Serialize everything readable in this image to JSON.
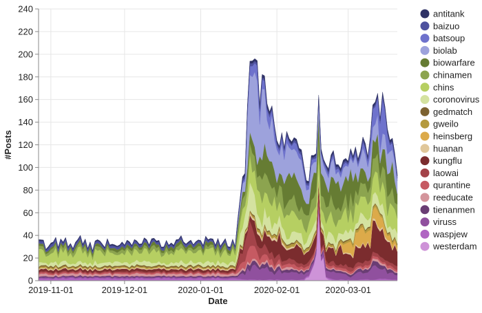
{
  "chart_data": {
    "type": "area",
    "stacked": true,
    "xlabel": "Date",
    "ylabel": "#Posts",
    "x_ticks": [
      "2019-11-01",
      "2019-12-01",
      "2020-01-01",
      "2020-02-01",
      "2020-03-01"
    ],
    "x_domain": [
      "2019-10-27",
      "2020-03-21"
    ],
    "ylim": [
      0,
      240
    ],
    "y_ticks": [
      0,
      20,
      40,
      60,
      80,
      100,
      120,
      140,
      160,
      180,
      200,
      220,
      240
    ],
    "grid": true,
    "legend_position": "right",
    "breakpoints": [
      "2019-10-27",
      "2020-01-15",
      "2020-01-19",
      "2020-01-21",
      "2020-01-23",
      "2020-01-25",
      "2020-01-28",
      "2020-01-31",
      "2020-02-03",
      "2020-02-06",
      "2020-02-09",
      "2020-02-12",
      "2020-02-15",
      "2020-02-18",
      "2020-02-21",
      "2020-02-24",
      "2020-02-27",
      "2020-03-01",
      "2020-03-05",
      "2020-03-09",
      "2020-03-12",
      "2020-03-15",
      "2020-03-18",
      "2020-03-21"
    ],
    "series": [
      {
        "name": "westerdam",
        "color": "#ce93d8",
        "values": [
          0,
          0,
          0,
          0,
          0,
          0,
          0,
          0,
          0,
          0,
          0,
          0,
          6,
          45,
          2,
          0,
          0,
          0,
          0,
          0,
          0,
          0,
          0,
          0
        ]
      },
      {
        "name": "waspjew",
        "color": "#b065c2",
        "values": [
          2,
          2,
          1,
          1,
          1,
          1,
          1,
          1,
          1,
          1,
          1,
          1,
          1,
          1,
          1,
          1,
          1,
          1,
          1,
          1,
          1,
          2,
          1,
          1
        ]
      },
      {
        "name": "viruss",
        "color": "#90509e",
        "values": [
          1,
          1,
          5,
          10,
          14,
          6,
          12,
          8,
          6,
          5,
          5,
          4,
          3,
          4,
          7,
          5,
          5,
          3,
          6,
          8,
          10,
          8,
          6,
          4
        ]
      },
      {
        "name": "tienanmen",
        "color": "#6a3d74",
        "values": [
          1,
          1,
          3,
          5,
          5,
          3,
          4,
          3,
          3,
          2,
          2,
          2,
          2,
          2,
          2,
          2,
          2,
          2,
          2,
          3,
          4,
          3,
          3,
          2
        ]
      },
      {
        "name": "reeducate",
        "color": "#d4959c",
        "values": [
          2,
          2,
          2,
          2,
          2,
          2,
          2,
          2,
          2,
          2,
          1,
          1,
          1,
          1,
          1,
          1,
          1,
          1,
          1,
          1,
          2,
          2,
          1,
          1
        ]
      },
      {
        "name": "qurantine",
        "color": "#c65a62",
        "values": [
          1,
          1,
          10,
          15,
          10,
          6,
          5,
          4,
          4,
          3,
          3,
          2,
          2,
          2,
          2,
          2,
          2,
          2,
          2,
          2,
          2,
          2,
          2,
          2
        ]
      },
      {
        "name": "laowai",
        "color": "#a34349",
        "values": [
          1,
          1,
          15,
          16,
          10,
          8,
          6,
          5,
          4,
          4,
          3,
          3,
          3,
          3,
          3,
          3,
          3,
          3,
          3,
          3,
          3,
          3,
          3,
          3
        ]
      },
      {
        "name": "kungflu",
        "color": "#7b2c2e",
        "values": [
          2,
          2,
          5,
          4,
          10,
          8,
          12,
          12,
          14,
          13,
          12,
          10,
          8,
          12,
          10,
          11,
          12,
          10,
          14,
          16,
          22,
          25,
          18,
          12
        ]
      },
      {
        "name": "huanan",
        "color": "#e0c79a",
        "values": [
          1,
          1,
          1,
          2,
          2,
          3,
          2,
          2,
          2,
          2,
          1,
          1,
          1,
          1,
          1,
          1,
          1,
          1,
          1,
          1,
          2,
          2,
          1,
          1
        ]
      },
      {
        "name": "heinsberg",
        "color": "#dcaa4a",
        "values": [
          0,
          0,
          0,
          0,
          0,
          0,
          0,
          0,
          0,
          0,
          0,
          0,
          0,
          0,
          0,
          0,
          2,
          12,
          14,
          10,
          12,
          6,
          4,
          2
        ]
      },
      {
        "name": "gweilo",
        "color": "#b49a3e",
        "values": [
          1,
          1,
          1,
          1,
          2,
          2,
          2,
          2,
          2,
          2,
          2,
          2,
          2,
          2,
          2,
          2,
          2,
          2,
          2,
          2,
          2,
          2,
          2,
          2
        ]
      },
      {
        "name": "gedmatch",
        "color": "#7d6230",
        "values": [
          1,
          1,
          1,
          1,
          1,
          1,
          1,
          1,
          1,
          1,
          1,
          1,
          1,
          1,
          1,
          1,
          1,
          1,
          1,
          1,
          1,
          1,
          1,
          1
        ]
      },
      {
        "name": "coronovirus",
        "color": "#d4e2a0",
        "values": [
          3,
          3,
          15,
          20,
          13,
          12,
          10,
          10,
          9,
          8,
          8,
          7,
          7,
          7,
          7,
          7,
          7,
          7,
          7,
          8,
          8,
          8,
          7,
          7
        ]
      },
      {
        "name": "chins",
        "color": "#b6cf62",
        "values": [
          9,
          9,
          15,
          20,
          20,
          18,
          18,
          18,
          16,
          16,
          15,
          15,
          15,
          14,
          15,
          15,
          15,
          14,
          15,
          16,
          18,
          18,
          16,
          14
        ]
      },
      {
        "name": "chinamen",
        "color": "#8ca44f",
        "values": [
          3,
          3,
          10,
          12,
          14,
          15,
          14,
          14,
          14,
          13,
          13,
          12,
          12,
          12,
          12,
          12,
          12,
          11,
          12,
          12,
          13,
          13,
          12,
          10
        ]
      },
      {
        "name": "biowarfare",
        "color": "#667c33",
        "values": [
          2,
          3,
          5,
          10,
          14,
          19,
          20,
          19,
          18,
          18,
          17,
          16,
          17,
          14,
          14,
          17,
          17,
          18,
          14,
          12,
          14,
          16,
          22,
          16
        ]
      },
      {
        "name": "biolab",
        "color": "#9da2dc",
        "values": [
          0,
          0,
          10,
          70,
          55,
          48,
          40,
          30,
          25,
          20,
          20,
          18,
          16,
          14,
          14,
          12,
          12,
          12,
          12,
          14,
          18,
          16,
          14,
          12
        ]
      },
      {
        "name": "batsoup",
        "color": "#6e72cc",
        "values": [
          0,
          0,
          2,
          8,
          10,
          10,
          8,
          7,
          6,
          5,
          5,
          4,
          4,
          3,
          3,
          3,
          3,
          3,
          3,
          6,
          15,
          25,
          8,
          3
        ]
      },
      {
        "name": "baizuo",
        "color": "#4e519e",
        "values": [
          2,
          2,
          2,
          2,
          2,
          3,
          2,
          2,
          2,
          2,
          2,
          2,
          2,
          2,
          2,
          2,
          2,
          2,
          2,
          2,
          2,
          2,
          2,
          2
        ]
      },
      {
        "name": "antitank",
        "color": "#2f3266",
        "values": [
          1,
          1,
          2,
          2,
          2,
          3,
          3,
          2,
          2,
          2,
          2,
          2,
          2,
          2,
          2,
          2,
          2,
          2,
          2,
          2,
          2,
          2,
          2,
          2
        ]
      }
    ],
    "legend_order": [
      "antitank",
      "baizuo",
      "batsoup",
      "biolab",
      "biowarfare",
      "chinamen",
      "chins",
      "coronovirus",
      "gedmatch",
      "gweilo",
      "heinsberg",
      "huanan",
      "kungflu",
      "laowai",
      "qurantine",
      "reeducate",
      "tienanmen",
      "viruss",
      "waspjew",
      "westerdam"
    ]
  }
}
